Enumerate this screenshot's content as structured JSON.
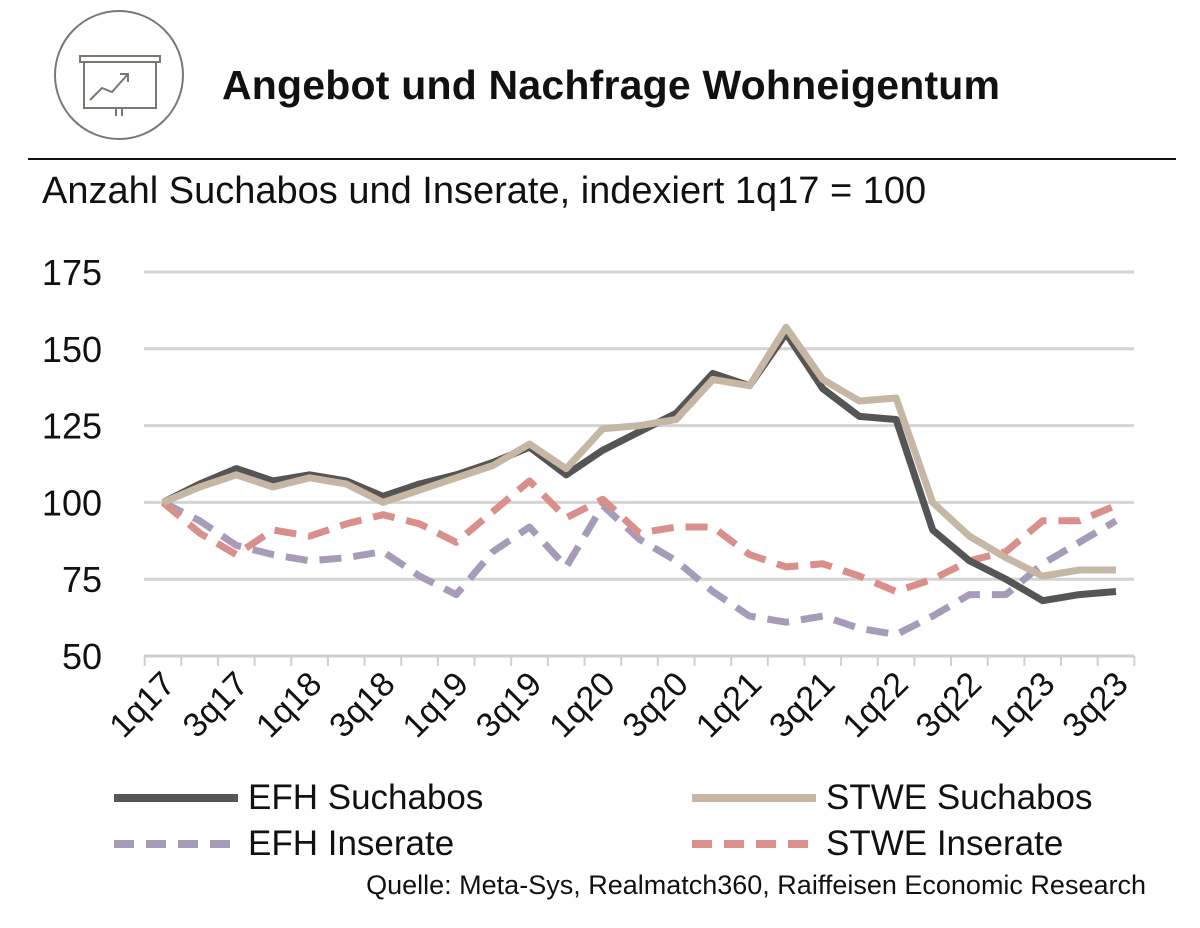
{
  "title": "Angebot und Nachfrage Wohneigentum",
  "subtitle": "Anzahl Suchabos und Inserate, indexiert 1q17 = 100",
  "source": "Quelle: Meta-Sys, Realmatch360, Raiffeisen Economic Research",
  "logo_icon": "presentation-chart-icon",
  "chart_data": {
    "type": "line",
    "x": [
      "1q17",
      "2q17",
      "3q17",
      "4q17",
      "1q18",
      "2q18",
      "3q18",
      "4q18",
      "1q19",
      "2q19",
      "3q19",
      "4q19",
      "1q20",
      "2q20",
      "3q20",
      "4q20",
      "1q21",
      "2q21",
      "3q21",
      "4q21",
      "1q22",
      "2q22",
      "3q22",
      "4q22",
      "1q23",
      "2q23",
      "3q23"
    ],
    "x_tick_labels": [
      "1q17",
      "3q17",
      "1q18",
      "3q18",
      "1q19",
      "3q19",
      "1q20",
      "3q20",
      "1q21",
      "3q21",
      "1q22",
      "3q22",
      "1q23",
      "3q23"
    ],
    "ylim": [
      50,
      175
    ],
    "yticks": [
      50,
      75,
      100,
      125,
      150,
      175
    ],
    "grid": true,
    "legend_position": "bottom",
    "series": [
      {
        "name": "EFH Suchabos",
        "color": "#555555",
        "style": "solid",
        "values": [
          100,
          106,
          111,
          107,
          109,
          107,
          102,
          106,
          109,
          113,
          118,
          109,
          117,
          123,
          129,
          142,
          138,
          155,
          137,
          128,
          127,
          91,
          81,
          75,
          68,
          70,
          71
        ]
      },
      {
        "name": "STWE Suchabos",
        "color": "#c5b7a3",
        "style": "solid",
        "values": [
          100,
          105,
          109,
          105,
          108,
          106,
          100,
          104,
          108,
          112,
          119,
          111,
          124,
          125,
          127,
          140,
          138,
          157,
          140,
          133,
          134,
          100,
          89,
          82,
          76,
          78,
          78
        ]
      },
      {
        "name": "EFH Inserate",
        "color": "#a69cba",
        "style": "dashed",
        "values": [
          100,
          94,
          86,
          83,
          81,
          82,
          84,
          76,
          70,
          84,
          92,
          79,
          99,
          88,
          81,
          71,
          63,
          61,
          63,
          59,
          57,
          63,
          70,
          70,
          80,
          87,
          94
        ]
      },
      {
        "name": "STWE Inserate",
        "color": "#d98f8a",
        "style": "dashed",
        "values": [
          100,
          90,
          83,
          91,
          89,
          93,
          96,
          93,
          87,
          97,
          107,
          95,
          101,
          90,
          92,
          92,
          83,
          79,
          80,
          76,
          71,
          75,
          81,
          84,
          94,
          94,
          99
        ]
      }
    ]
  }
}
